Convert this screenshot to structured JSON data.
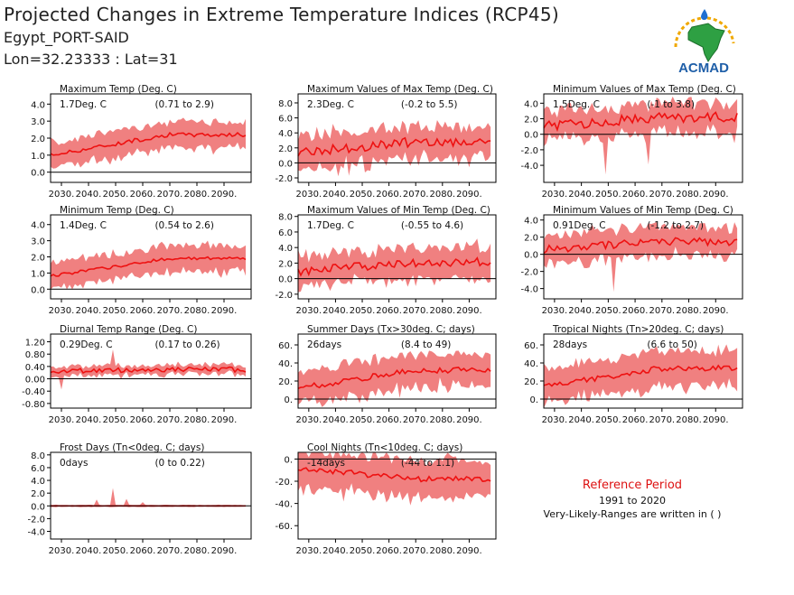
{
  "header": {
    "title": "Projected Changes in Extreme Temperature Indices (RCP45)",
    "location": "Egypt_PORT-SAID",
    "coords": "Lon=32.23333 : Lat=31",
    "logo_text": "ACMAD"
  },
  "colors": {
    "band": "#f08080",
    "line": "#ee1111",
    "logo_text": "#1f5fa8",
    "africa": "#2ea043",
    "zero_line": "#000000"
  },
  "reference": {
    "title": "Reference Period",
    "years": "1991 to 2020",
    "note": "Very-Likely-Ranges are written in ( )"
  },
  "x_axis_labels": [
    "2030.",
    "2040.",
    "2050.",
    "2060.",
    "2070.",
    "2080.",
    "2090."
  ],
  "chart_data": [
    {
      "type": "area",
      "title": "Maximum Temp (Deg. C)",
      "mean_label": "1.7Deg. C",
      "range_label": "(0.71 to 2.9)",
      "x_range": [
        2026,
        2100
      ],
      "ylim": [
        -0.6,
        4.6
      ],
      "ticks": [
        4.0,
        3.0,
        2.0,
        1.0,
        0.0
      ],
      "tick_labels": [
        "4.0",
        "3.0",
        "2.0",
        "1.0",
        "0.0"
      ],
      "mean_start": 1.0,
      "mean_end": 2.2,
      "spread": 0.75,
      "noise": 0.15,
      "spikes": []
    },
    {
      "type": "area",
      "title": "Maximum Values of Max Temp (Deg. C)",
      "mean_label": "2.3Deg. C",
      "range_label": "(-0.2 to 5.5)",
      "x_range": [
        2026,
        2100
      ],
      "ylim": [
        -2.6,
        9.2
      ],
      "ticks": [
        8.0,
        6.0,
        4.0,
        2.0,
        0.0,
        -2.0
      ],
      "tick_labels": [
        "8.0",
        "6.0",
        "4.0",
        "2.0",
        "0.0",
        "-2.0"
      ],
      "mean_start": 1.4,
      "mean_end": 2.8,
      "spread": 2.2,
      "noise": 0.8,
      "spikes": []
    },
    {
      "type": "area",
      "title": "Minimum Values of Max Temp (Deg. C)",
      "mean_label": "1.5Deg. C",
      "range_label": "(-1 to 3.8)",
      "x_range": [
        2026,
        2100
      ],
      "ylim": [
        -6.2,
        5.2
      ],
      "ticks": [
        4.0,
        2.0,
        0.0,
        -2.0,
        -4.0
      ],
      "tick_labels": [
        "4.0",
        "2.0",
        "0.0",
        "-2.0",
        "-4.0"
      ],
      "mean_start": 1.0,
      "mean_end": 2.2,
      "spread": 1.9,
      "noise": 0.8,
      "spikes": [
        [
          2049,
          -5.2
        ],
        [
          2065,
          -3.9
        ]
      ]
    },
    {
      "type": "area",
      "title": "Minimum Temp (Deg. C)",
      "mean_label": "1.4Deg. C",
      "range_label": "(0.54 to 2.6)",
      "x_range": [
        2026,
        2100
      ],
      "ylim": [
        -0.6,
        4.6
      ],
      "ticks": [
        4.0,
        3.0,
        2.0,
        1.0,
        0.0
      ],
      "tick_labels": [
        "4.0",
        "3.0",
        "2.0",
        "1.0",
        "0.0"
      ],
      "mean_start": 0.8,
      "mean_end": 1.9,
      "spread": 0.8,
      "noise": 0.12,
      "spikes": []
    },
    {
      "type": "area",
      "title": "Maximum Values of Min Temp (Deg. C)",
      "mean_label": "1.7Deg. C",
      "range_label": "(-0.55 to 4.6)",
      "x_range": [
        2026,
        2100
      ],
      "ylim": [
        -2.6,
        8.2
      ],
      "ticks": [
        8.0,
        6.0,
        4.0,
        2.0,
        0.0,
        -2.0
      ],
      "tick_labels": [
        "8.0",
        "6.0",
        "4.0",
        "2.0",
        "0.0",
        "-2.0"
      ],
      "mean_start": 0.9,
      "mean_end": 2.1,
      "spread": 2.0,
      "noise": 0.7,
      "spikes": []
    },
    {
      "type": "area",
      "title": "Minimum Values of Min Temp (Deg. C)",
      "mean_label": "0.91Deg. C",
      "range_label": "(-1.2 to 2.7)",
      "x_range": [
        2026,
        2100
      ],
      "ylim": [
        -5.2,
        4.6
      ],
      "ticks": [
        4.0,
        2.0,
        0.0,
        -2.0,
        -4.0
      ],
      "tick_labels": [
        "4.0",
        "2.0",
        "0.0",
        "-2.0",
        "-4.0"
      ],
      "mean_start": 0.6,
      "mean_end": 1.5,
      "spread": 1.7,
      "noise": 0.6,
      "spikes": [
        [
          2052,
          -4.4
        ]
      ]
    },
    {
      "type": "area",
      "title": "Diurnal Temp Range (Deg. C)",
      "mean_label": "0.29Deg. C",
      "range_label": "(0.17 to 0.26)",
      "x_range": [
        2026,
        2100
      ],
      "ylim": [
        -0.95,
        1.45
      ],
      "ticks": [
        1.2,
        0.8,
        0.4,
        0.0,
        -0.4,
        -0.8
      ],
      "tick_labels": [
        "1.20",
        "0.80",
        "0.40",
        "0.00",
        "-0.40",
        "-0.80"
      ],
      "mean_start": 0.25,
      "mean_end": 0.3,
      "spread": 0.15,
      "noise": 0.1,
      "spikes": [
        [
          2049,
          0.95
        ],
        [
          2030,
          -0.35
        ]
      ]
    },
    {
      "type": "area",
      "title": "Summer Days (Tx>30deg. C; days)",
      "mean_label": "26days",
      "range_label": "(8.4 to 49)",
      "x_range": [
        2026,
        2100
      ],
      "ylim": [
        -10,
        72
      ],
      "ticks": [
        60,
        40,
        20,
        0
      ],
      "tick_labels": [
        "60.",
        "40.",
        "20.",
        "0."
      ],
      "mean_start": 12,
      "mean_end": 32,
      "spread": 18,
      "noise": 4,
      "spikes": []
    },
    {
      "type": "area",
      "title": "Tropical Nights (Tn>20deg. C; days)",
      "mean_label": "28days",
      "range_label": "(6.6 to 50)",
      "x_range": [
        2026,
        2100
      ],
      "ylim": [
        -10,
        72
      ],
      "ticks": [
        60,
        40,
        20,
        0
      ],
      "tick_labels": [
        "60.",
        "40.",
        "20.",
        "0."
      ],
      "mean_start": 14,
      "mean_end": 34,
      "spread": 19,
      "noise": 4,
      "spikes": []
    },
    {
      "type": "area",
      "title": "Frost Days (Tn<0deg. C; days)",
      "mean_label": "0days",
      "range_label": "(0 to 0.22)",
      "x_range": [
        2026,
        2100
      ],
      "ylim": [
        -5.2,
        8.4
      ],
      "ticks": [
        8.0,
        6.0,
        4.0,
        2.0,
        0.0,
        -2.0,
        -4.0
      ],
      "tick_labels": [
        "8.0",
        "6.0",
        "4.0",
        "2.0",
        "0.0",
        "-2.0",
        "-4.0"
      ],
      "mean_start": 0.0,
      "mean_end": 0.0,
      "spread": 0.15,
      "noise": 0.0,
      "spikes": [
        [
          2049,
          2.8
        ],
        [
          2043,
          1.0
        ],
        [
          2054,
          1.1
        ],
        [
          2060,
          0.6
        ]
      ]
    },
    {
      "type": "area",
      "title": "Cool Nights (Tn<10deg. C; days)",
      "mean_label": "-14days",
      "range_label": "(-44 to 1.1)",
      "x_range": [
        2026,
        2100
      ],
      "ylim": [
        -72,
        6
      ],
      "ticks": [
        0,
        -20,
        -40,
        -60
      ],
      "tick_labels": [
        "0.",
        "-20.",
        "-40.",
        "-60."
      ],
      "mean_start": -8,
      "mean_end": -18,
      "spread": 17,
      "noise": 3,
      "spikes": []
    }
  ]
}
